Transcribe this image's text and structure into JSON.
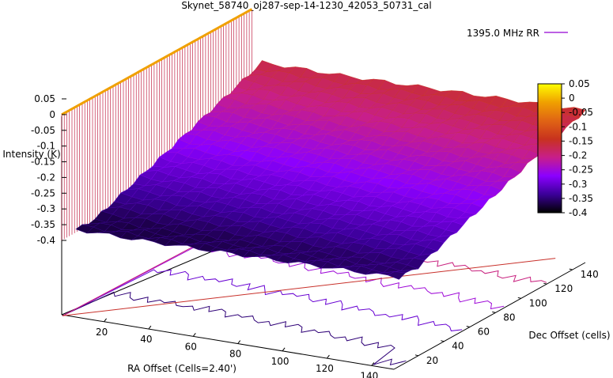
{
  "chart_data": {
    "type": "surface",
    "title": "Skynet_58740_oj287-sep-14-1230_42053_50731_cal",
    "xlabel": "RA Offset (Cells=2.40')",
    "ylabel": "Dec Offset (cells)",
    "zlabel": "Intensity (K)",
    "series": [
      {
        "name": "1395.0 MHz RR",
        "color": "#9400d3"
      }
    ],
    "x_range": [
      1,
      150
    ],
    "y_range": [
      1,
      150
    ],
    "zlim": [
      -0.4,
      0.05
    ],
    "x_ticks": [
      "20",
      "40",
      "60",
      "80",
      "100",
      "120",
      "140"
    ],
    "y_ticks": [
      "20",
      "40",
      "60",
      "80",
      "100",
      "120",
      "140"
    ],
    "z_ticks": [
      "0.05",
      "0",
      "-0.05",
      "-0.1",
      "-0.15",
      "-0.2",
      "-0.25",
      "-0.3",
      "-0.35",
      "-0.4"
    ],
    "colorbar_ticks": [
      "0.05",
      "0",
      "-0.05",
      "-0.1",
      "-0.15",
      "-0.2",
      "-0.25",
      "-0.3",
      "-0.35",
      "-0.4"
    ],
    "surface_summary": {
      "near_ra_edge_intensity": 0.0,
      "typical_low_plateau_intensity": -0.37,
      "far_corner_intensity": -0.06,
      "contour_levels": [
        -0.35,
        -0.3,
        -0.25,
        -0.2,
        -0.15,
        -0.1,
        -0.05
      ]
    },
    "colormap": [
      "#000000",
      "#3b0099",
      "#8b00ff",
      "#c81e8a",
      "#c8321e",
      "#e06414",
      "#f0a000",
      "#ffff00"
    ]
  }
}
